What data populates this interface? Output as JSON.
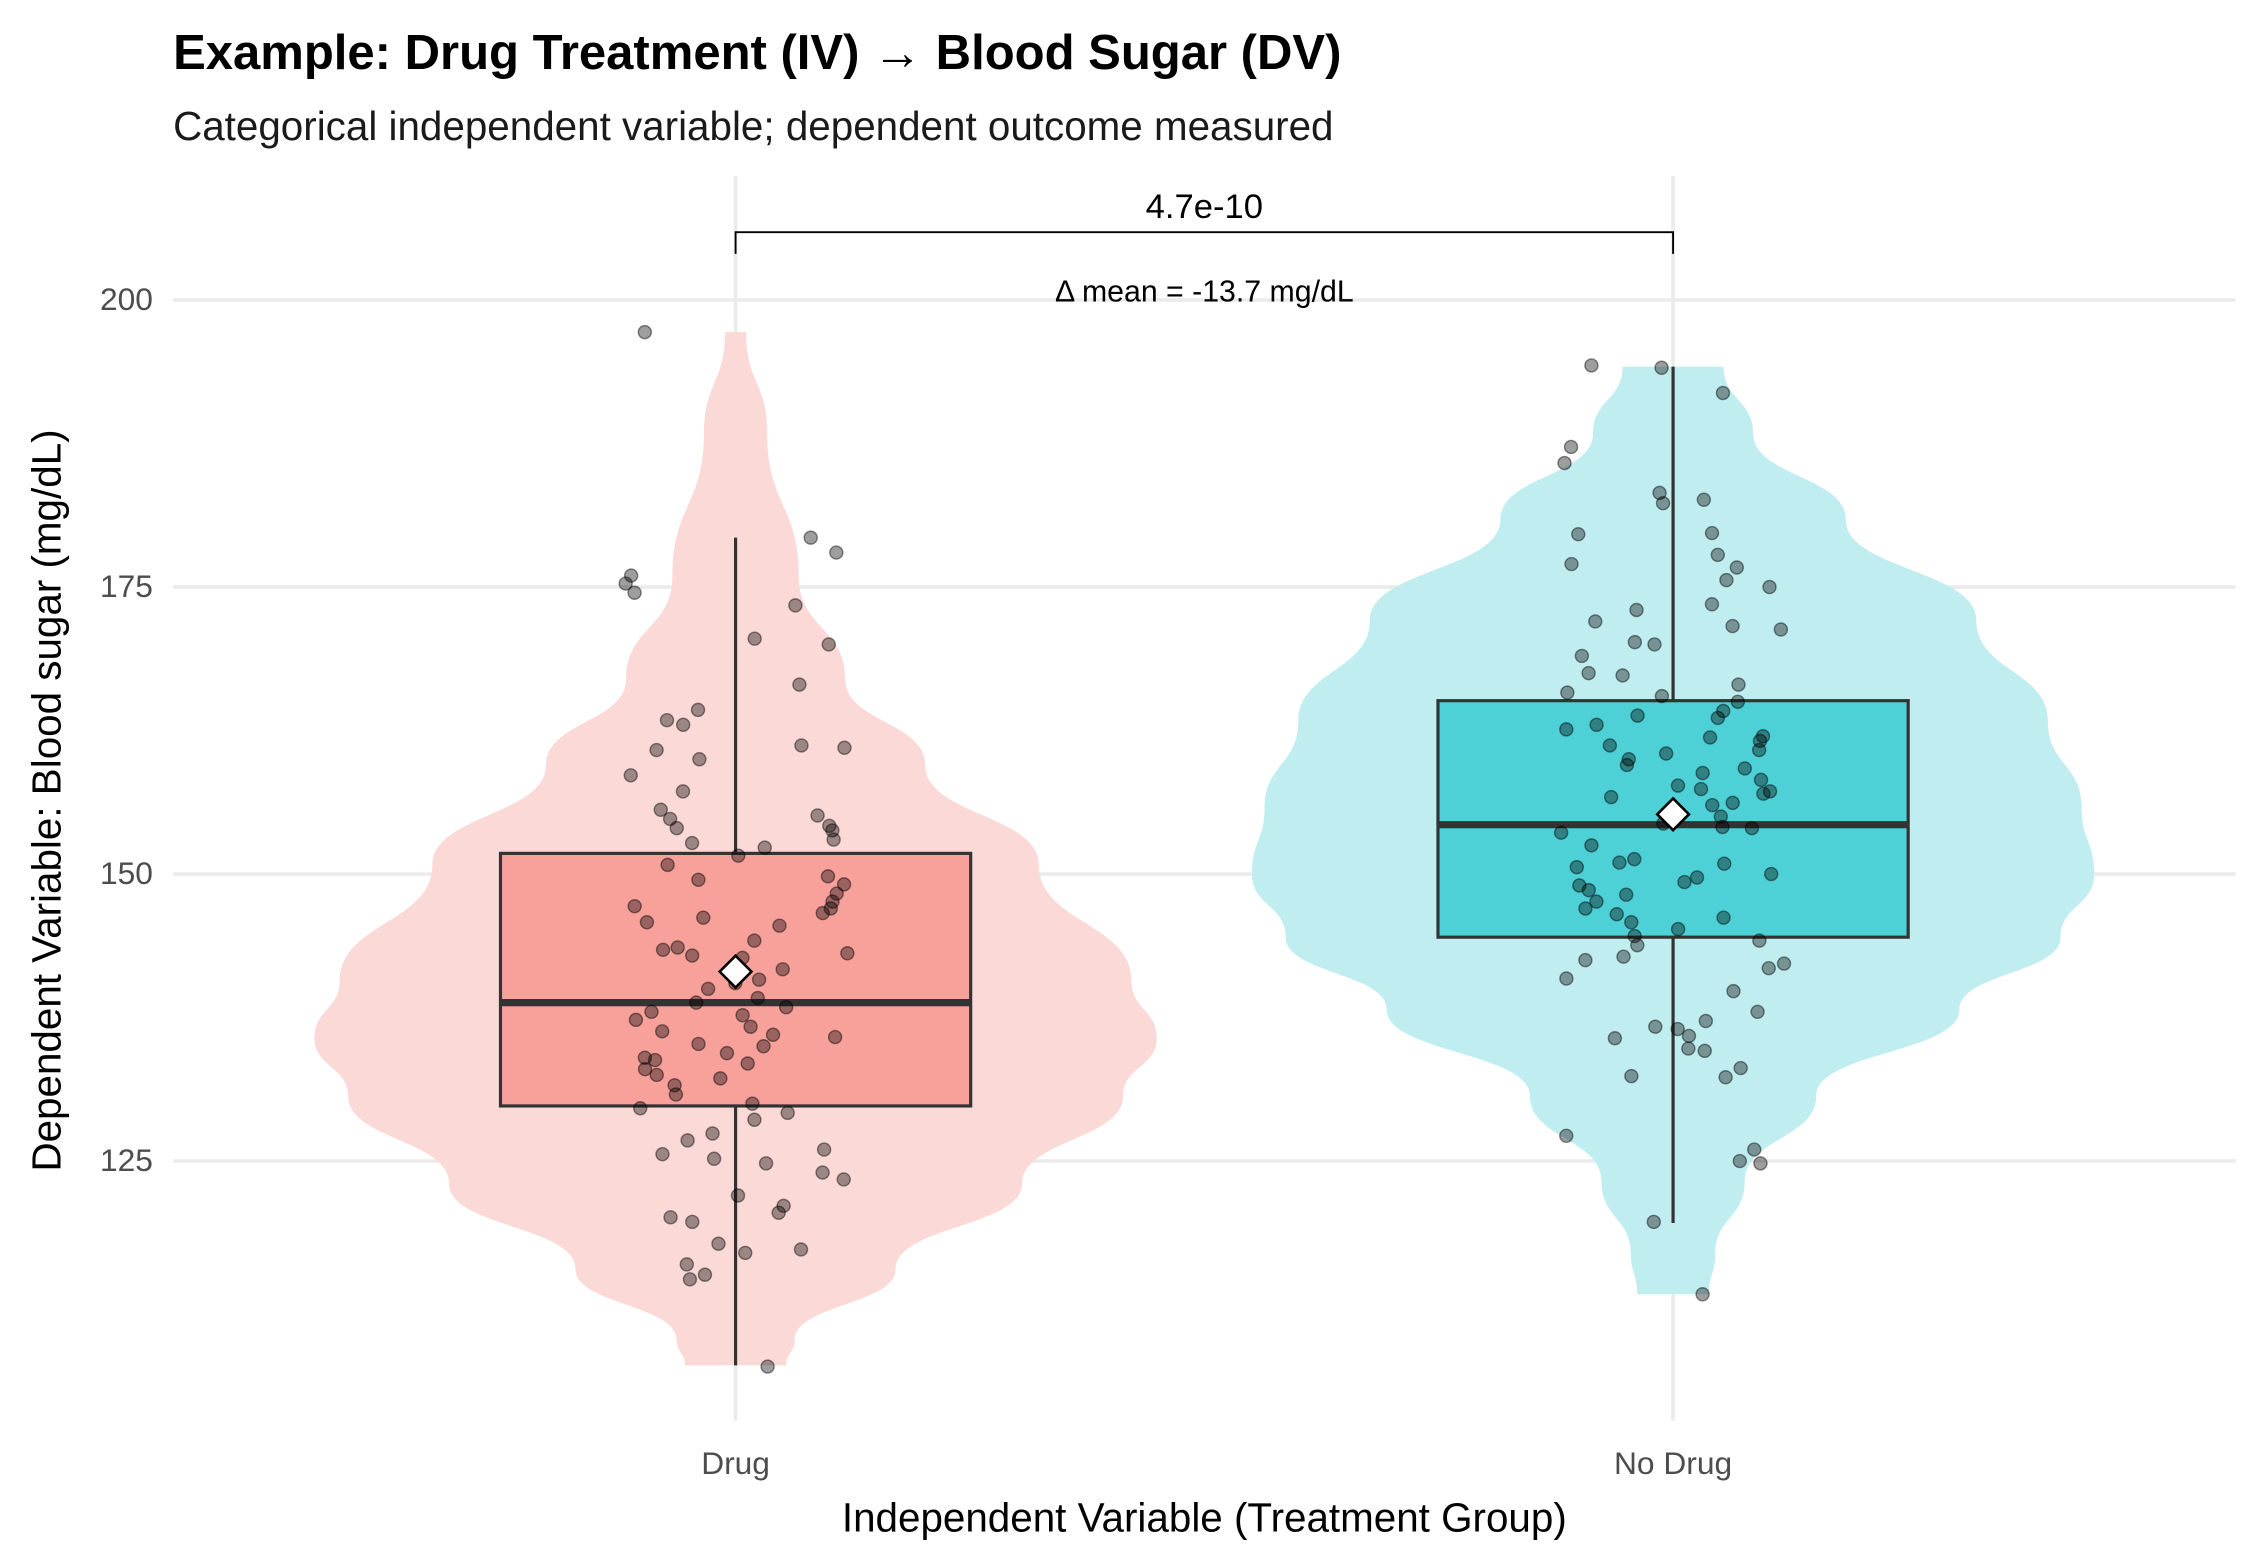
{
  "chart_data": {
    "type": "violin-box-jitter",
    "title": "Example: Drug Treatment (IV) → Blood Sugar (DV)",
    "subtitle": "Categorical independent variable; dependent outcome measured",
    "xlabel": "Independent Variable (Treatment Group)",
    "ylabel": "Dependent Variable: Blood sugar (mg/dL)",
    "categories": [
      "Drug",
      "No Drug"
    ],
    "ylim": [
      102,
      211
    ],
    "yticks": [
      125,
      150,
      175,
      200
    ],
    "grid": true,
    "legend": "none",
    "annotation": {
      "p_value": "4.7e-10",
      "delta": "Δ mean = -13.7 mg/dL"
    },
    "series": [
      {
        "category": "Drug",
        "violin_color": "#FBD9D6",
        "box_color": "#F8A09A",
        "box": {
          "q1": 129.8,
          "median": 138.8,
          "q3": 151.8,
          "whisker_low": 107.2,
          "whisker_high": 179.3,
          "mean": 141.5
        },
        "density": [
          [
            107.2,
            0.12
          ],
          [
            109.4,
            0.14
          ],
          [
            115.6,
            0.38
          ],
          [
            123,
            0.68
          ],
          [
            130.7,
            0.92
          ],
          [
            135.7,
            1.0
          ],
          [
            140.7,
            0.94
          ],
          [
            150.8,
            0.72
          ],
          [
            159.5,
            0.45
          ],
          [
            167,
            0.26
          ],
          [
            175.9,
            0.15
          ],
          [
            188.4,
            0.075
          ],
          [
            197.2,
            0.025
          ]
        ],
        "points": [
          197.2,
          179.3,
          178,
          176,
          175.3,
          174.5,
          173.4,
          170.5,
          170,
          166.5,
          164.3,
          163.4,
          163,
          161.2,
          161,
          160.8,
          160,
          158.6,
          157.2,
          155.6,
          155.1,
          154.8,
          154.2,
          154,
          153.8,
          153,
          152.7,
          152.3,
          151.6,
          150.8,
          149.8,
          149.5,
          149.1,
          148.3,
          147.6,
          147.2,
          147,
          146.6,
          146.2,
          145.8,
          145.5,
          144.2,
          143.6,
          143.4,
          143.1,
          142.9,
          142.7,
          141.7,
          140.8,
          140.5,
          140,
          139.2,
          138.8,
          138.4,
          138,
          137.7,
          137.3,
          136.7,
          136.3,
          136,
          135.8,
          135.2,
          135,
          134.4,
          134,
          133.8,
          133.5,
          133,
          132.5,
          132.2,
          131.6,
          130.8,
          130,
          129.6,
          129.2,
          128.6,
          127.4,
          126.8,
          126,
          125.6,
          125.2,
          124.8,
          124,
          123.4,
          122,
          121.1,
          120.5,
          120.1,
          119.7,
          117.8,
          117.3,
          117,
          116,
          115.1,
          114.7,
          107.1
        ]
      },
      {
        "category": "No Drug",
        "violin_color": "#C0EEF0",
        "box_color": "#4DD0D6",
        "box": {
          "q1": 144.5,
          "median": 154.3,
          "q3": 165.1,
          "whisker_low": 119.6,
          "whisker_high": 194.2,
          "mean": 155.2
        },
        "density": [
          [
            113.4,
            0.085
          ],
          [
            116.9,
            0.1
          ],
          [
            123.2,
            0.17
          ],
          [
            130.7,
            0.34
          ],
          [
            138.2,
            0.68
          ],
          [
            144.5,
            0.92
          ],
          [
            150,
            1.0
          ],
          [
            155.8,
            0.97
          ],
          [
            163.3,
            0.89
          ],
          [
            172.1,
            0.72
          ],
          [
            180.9,
            0.41
          ],
          [
            188.4,
            0.19
          ],
          [
            194.2,
            0.12
          ]
        ],
        "points": [
          194.3,
          194.1,
          191.9,
          187.2,
          185.8,
          183.2,
          182.6,
          182.3,
          179.7,
          179.6,
          177.8,
          177,
          176.7,
          175.6,
          175,
          173.5,
          173,
          172,
          171.6,
          171.3,
          170.2,
          170,
          169,
          167.5,
          167.3,
          166.5,
          165.8,
          165.5,
          165,
          164.2,
          163.8,
          163.6,
          163,
          162.6,
          162,
          161.9,
          161.6,
          161.2,
          160.8,
          160.5,
          160,
          159.5,
          159.2,
          158.8,
          158.2,
          157.7,
          157.4,
          157.2,
          157,
          156.7,
          156.2,
          156,
          155.4,
          155,
          154.4,
          154.1,
          154,
          153.6,
          152.5,
          151.3,
          151,
          150.9,
          150.6,
          150,
          149.7,
          149.3,
          149,
          148.6,
          148.2,
          147.6,
          147,
          146.5,
          146.2,
          145.8,
          145.2,
          144.6,
          144.2,
          143.8,
          142.8,
          142.5,
          142.2,
          141.8,
          140.9,
          139.8,
          138,
          137.2,
          136.7,
          136.5,
          135.9,
          135.7,
          134.8,
          134.6,
          133.1,
          132.4,
          132.3,
          127.2,
          126,
          125,
          124.8,
          119.7,
          113.4
        ]
      }
    ]
  }
}
